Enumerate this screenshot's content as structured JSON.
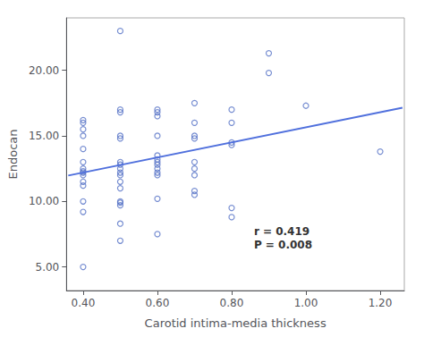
{
  "chart_data": {
    "type": "scatter",
    "xlabel": "Carotid intima-media thickness",
    "ylabel": "Endocan",
    "series": [
      {
        "type": "scatter",
        "x": [
          0.4,
          0.4,
          0.4,
          0.4,
          0.4,
          0.4,
          0.4,
          0.4,
          0.4,
          0.4,
          0.4,
          0.4,
          0.4,
          0.4,
          0.4,
          0.5,
          0.5,
          0.5,
          0.5,
          0.5,
          0.5,
          0.5,
          0.5,
          0.5,
          0.5,
          0.5,
          0.5,
          0.5,
          0.5,
          0.5,
          0.5,
          0.5,
          0.6,
          0.6,
          0.6,
          0.6,
          0.6,
          0.6,
          0.6,
          0.6,
          0.6,
          0.6,
          0.6,
          0.6,
          0.6,
          0.7,
          0.7,
          0.7,
          0.7,
          0.7,
          0.7,
          0.7,
          0.7,
          0.7,
          0.8,
          0.8,
          0.8,
          0.8,
          0.8,
          0.8,
          0.9,
          0.9,
          1.0,
          1.2
        ],
        "values": [
          5.0,
          9.2,
          10.0,
          11.2,
          11.5,
          12.0,
          12.2,
          12.3,
          12.5,
          13.0,
          14.0,
          15.0,
          15.5,
          16.0,
          16.2,
          7.0,
          8.3,
          9.7,
          9.9,
          10.0,
          11.0,
          11.5,
          12.0,
          12.2,
          12.5,
          12.8,
          13.0,
          14.8,
          15.0,
          16.8,
          17.0,
          23.0,
          7.5,
          10.2,
          12.0,
          12.2,
          12.5,
          12.8,
          13.0,
          13.2,
          13.5,
          15.0,
          16.5,
          16.8,
          17.0,
          10.5,
          10.8,
          12.0,
          12.5,
          13.0,
          14.8,
          15.0,
          16.0,
          17.5,
          8.8,
          9.5,
          14.3,
          14.5,
          16.0,
          17.0,
          21.3,
          19.8,
          17.3,
          13.8
        ]
      },
      {
        "type": "line",
        "x": [
          0.36,
          1.26
        ],
        "values": [
          11.9719,
          17.1423
        ]
      }
    ],
    "annotations": [
      {
        "text": "r = 0.419\nP = 0.008",
        "x": 0.86,
        "y": 6.2
      }
    ],
    "xlim": [
      0.355,
      1.265
    ],
    "ylim": [
      3.2,
      24.0
    ],
    "xticks": [
      {
        "value": 0.4,
        "label": "0.40"
      },
      {
        "value": 0.6,
        "label": "0.60"
      },
      {
        "value": 0.8,
        "label": "0.80"
      },
      {
        "value": 1.0,
        "label": "1.00"
      },
      {
        "value": 1.2,
        "label": "1.20"
      }
    ],
    "yticks": [
      {
        "value": 5,
        "label": "5.00"
      },
      {
        "value": 10,
        "label": "10.00"
      },
      {
        "value": 15,
        "label": "15.00"
      },
      {
        "value": 20,
        "label": "20.00"
      }
    ],
    "grid": false
  }
}
